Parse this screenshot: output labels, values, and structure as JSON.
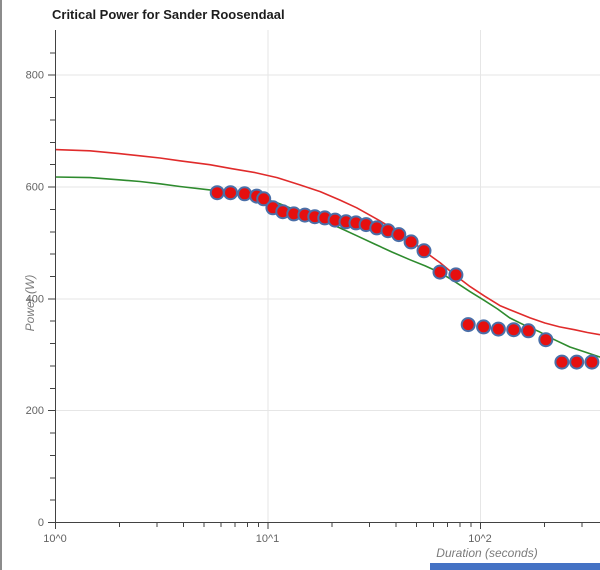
{
  "chart_data": {
    "type": "scatter",
    "title": "Critical Power for Sander Roosendaal",
    "xlabel": "Duration (seconds)",
    "ylabel": "Power (W)",
    "x_scale": "log",
    "xlim": [
      1,
      367
    ],
    "ylim": [
      0,
      880
    ],
    "grid": true,
    "x_major_ticks": [
      1,
      10,
      100
    ],
    "x_major_tick_labels": [
      "10^0",
      "10^1",
      "10^2"
    ],
    "x_minor_ticks": [
      2,
      3,
      4,
      5,
      6,
      7,
      8,
      9,
      20,
      30,
      40,
      50,
      60,
      70,
      80,
      90,
      200,
      300
    ],
    "y_major_ticks": [
      0,
      200,
      400,
      600,
      800
    ],
    "y_minor_tick_step": 40,
    "y_minor_tick_max": 840,
    "axis_color": "#424242",
    "grid_color": "#e6e6e6",
    "tick_label_color": "#636363",
    "series": [
      {
        "name": "power-duration-points",
        "type": "scatter",
        "point_fill": "#e60f0f",
        "point_stroke": "#4a6fa8",
        "points": [
          [
            5.8,
            589
          ],
          [
            6.7,
            589
          ],
          [
            7.8,
            587
          ],
          [
            8.9,
            583
          ],
          [
            9.6,
            578
          ],
          [
            10.6,
            562
          ],
          [
            11.8,
            555
          ],
          [
            13.3,
            551
          ],
          [
            15.0,
            549
          ],
          [
            16.7,
            546
          ],
          [
            18.6,
            544
          ],
          [
            20.8,
            540
          ],
          [
            23.4,
            537
          ],
          [
            26.1,
            535
          ],
          [
            29.1,
            532
          ],
          [
            32.7,
            526
          ],
          [
            36.9,
            521
          ],
          [
            41.5,
            514
          ],
          [
            47.4,
            501
          ],
          [
            54.5,
            485
          ],
          [
            64.8,
            447
          ],
          [
            77.0,
            442
          ],
          [
            88.0,
            353
          ],
          [
            104,
            349
          ],
          [
            122,
            345
          ],
          [
            144,
            344
          ],
          [
            169,
            342
          ],
          [
            204,
            326
          ],
          [
            243,
            286
          ],
          [
            285,
            286
          ],
          [
            336,
            286
          ]
        ]
      },
      {
        "name": "critical-power-model-red",
        "type": "line",
        "color": "#e02b2b",
        "points": [
          [
            1,
            666
          ],
          [
            1.46,
            664
          ],
          [
            2.0,
            659
          ],
          [
            2.51,
            655
          ],
          [
            3.12,
            651
          ],
          [
            3.87,
            646
          ],
          [
            5.35,
            639
          ],
          [
            6.8,
            632
          ],
          [
            8.74,
            625
          ],
          [
            11.1,
            616
          ],
          [
            14.2,
            603
          ],
          [
            17.7,
            591
          ],
          [
            21.9,
            576
          ],
          [
            26.3,
            562
          ],
          [
            32,
            544
          ],
          [
            38.5,
            526
          ],
          [
            46.9,
            505
          ],
          [
            55.2,
            483
          ],
          [
            64.8,
            464
          ],
          [
            76,
            442
          ],
          [
            89.8,
            421
          ],
          [
            105,
            404
          ],
          [
            124,
            387
          ],
          [
            146,
            376
          ],
          [
            172,
            365
          ],
          [
            202,
            356
          ],
          [
            237,
            349
          ],
          [
            278,
            344
          ],
          [
            320,
            339
          ],
          [
            367,
            335
          ]
        ]
      },
      {
        "name": "critical-power-model-green",
        "type": "line",
        "color": "#2e8b2e",
        "points": [
          [
            1,
            617
          ],
          [
            1.46,
            616
          ],
          [
            2.0,
            612
          ],
          [
            2.51,
            609
          ],
          [
            3.12,
            605
          ],
          [
            3.87,
            600
          ],
          [
            5.35,
            594
          ],
          [
            6.8,
            588
          ],
          [
            8.74,
            583
          ],
          [
            11.1,
            571
          ],
          [
            14.2,
            555
          ],
          [
            17.7,
            541
          ],
          [
            21.9,
            526
          ],
          [
            26.3,
            512
          ],
          [
            32,
            497
          ],
          [
            38.5,
            483
          ],
          [
            46.9,
            469
          ],
          [
            55.2,
            458
          ],
          [
            64.8,
            446
          ],
          [
            76,
            430
          ],
          [
            89.8,
            412
          ],
          [
            105,
            396
          ],
          [
            121,
            381
          ],
          [
            138,
            365
          ],
          [
            162,
            352
          ],
          [
            191,
            340
          ],
          [
            224,
            326
          ],
          [
            265,
            313
          ],
          [
            312,
            304
          ],
          [
            367,
            295
          ]
        ]
      }
    ]
  },
  "decor": {
    "left_border_color": "#8c8c8c",
    "scrollbar_color": "#4472c4"
  }
}
